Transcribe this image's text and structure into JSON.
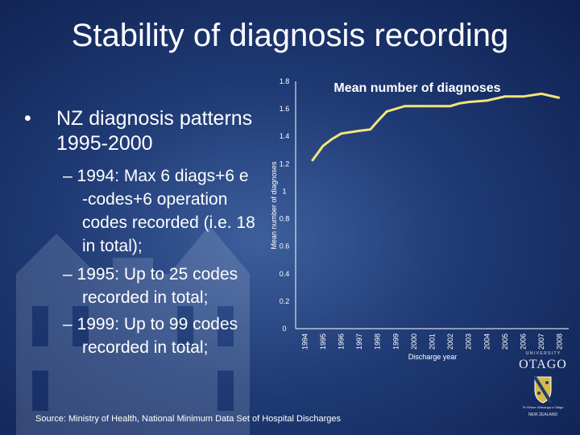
{
  "slide": {
    "title": "Stability of diagnosis recording",
    "bullet_main_line1": "NZ diagnosis patterns",
    "bullet_main_line2": "1995-2000",
    "sub1": [
      "– 1994: Max 6 diags+6 e",
      "-codes+6 operation",
      "codes recorded (i.e. 18",
      "in total);"
    ],
    "sub2": [
      "– 1995: Up to 25 codes",
      "recorded in total;"
    ],
    "sub3": [
      "– 1999: Up to 99 codes",
      "recorded in total;"
    ],
    "source": "Source: Ministry of Health, National Minimum Data Set of Hospital Discharges",
    "logo": {
      "university": "U N I V E R S I T Y",
      "name": "OTAGO",
      "tagline": "Te Whare Wānanga o Otāgo",
      "country": "NEW ZEALAND"
    }
  },
  "chart_data": {
    "type": "line",
    "title": "Mean number of diagnoses",
    "xlabel": "Discharge year",
    "ylabel": "Mean number of diagnoses",
    "ylim": [
      0,
      1.8
    ],
    "yticks": [
      0,
      0.2,
      0.4,
      0.6,
      0.8,
      1,
      1.2,
      1.4,
      1.6,
      1.8
    ],
    "ytick_labels": [
      "0",
      "0.2",
      "0.4",
      "0.6",
      "0.8",
      "1",
      "1.2",
      "1.4",
      "1.6",
      "1.8"
    ],
    "categories": [
      "1994",
      "1995",
      "1996",
      "1997",
      "1998",
      "1999",
      "2000",
      "2001",
      "2002",
      "2003",
      "2004",
      "2005",
      "2006",
      "2007",
      "2008"
    ],
    "points": [
      {
        "x": 1994.4,
        "y": 1.22
      },
      {
        "x": 1995.0,
        "y": 1.33
      },
      {
        "x": 1995.5,
        "y": 1.38
      },
      {
        "x": 1996.0,
        "y": 1.42
      },
      {
        "x": 1996.5,
        "y": 1.43
      },
      {
        "x": 1997.0,
        "y": 1.44
      },
      {
        "x": 1997.6,
        "y": 1.45
      },
      {
        "x": 1998.0,
        "y": 1.51
      },
      {
        "x": 1998.5,
        "y": 1.58
      },
      {
        "x": 1999.0,
        "y": 1.6
      },
      {
        "x": 1999.5,
        "y": 1.62
      },
      {
        "x": 2000.0,
        "y": 1.62
      },
      {
        "x": 2001.0,
        "y": 1.62
      },
      {
        "x": 2002.0,
        "y": 1.62
      },
      {
        "x": 2002.5,
        "y": 1.64
      },
      {
        "x": 2003.0,
        "y": 1.65
      },
      {
        "x": 2004.0,
        "y": 1.66
      },
      {
        "x": 2005.0,
        "y": 1.69
      },
      {
        "x": 2006.0,
        "y": 1.69
      },
      {
        "x": 2007.0,
        "y": 1.71
      },
      {
        "x": 2008.0,
        "y": 1.68
      }
    ],
    "line_color": "#f3e57a",
    "grid": false
  }
}
